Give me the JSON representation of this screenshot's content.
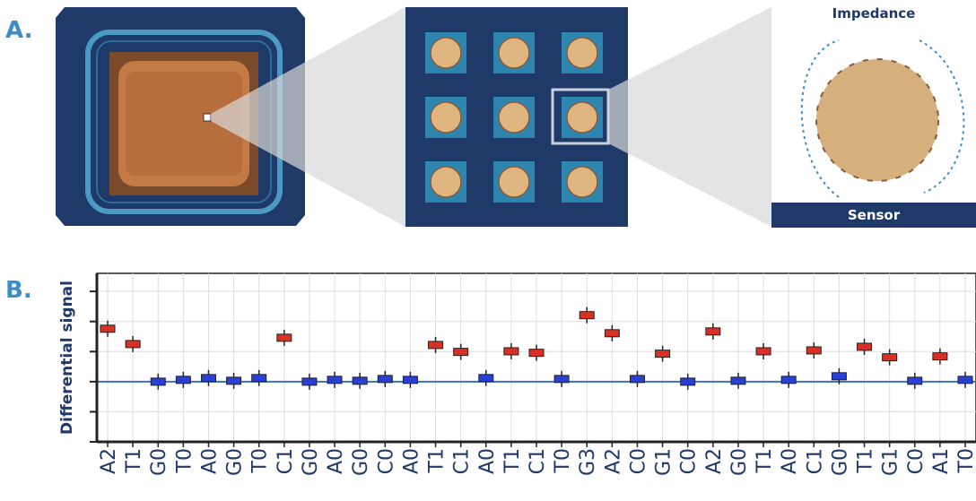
{
  "panel_a": {
    "label": "A.",
    "impedance": "Impedance",
    "sensor": "Sensor"
  },
  "panel_b": {
    "label": "B."
  },
  "chart_data": {
    "type": "box",
    "ylabel": "Differential signal",
    "categories": [
      "A2",
      "T1",
      "G0",
      "T0",
      "A0",
      "G0",
      "T0",
      "C1",
      "G0",
      "A0",
      "G0",
      "C0",
      "A0",
      "T1",
      "C1",
      "A0",
      "T1",
      "C1",
      "T0",
      "G3",
      "A2",
      "C0",
      "G1",
      "C0",
      "A2",
      "G0",
      "T1",
      "A0",
      "C1",
      "G0",
      "T1",
      "G1",
      "C0",
      "A1",
      "T0"
    ],
    "values": [
      1.76,
      1.25,
      0,
      0.06,
      0.12,
      0.03,
      0.12,
      1.46,
      0,
      0.06,
      0.03,
      0.09,
      0.06,
      1.22,
      0.99,
      0.12,
      1.01,
      0.96,
      0.09,
      2.21,
      1.61,
      0.09,
      0.93,
      0,
      1.67,
      0.03,
      1.01,
      0.06,
      1.04,
      0.18,
      1.16,
      0.81,
      0.03,
      0.84,
      0.06
    ],
    "colors": [
      "#d93025",
      "#d93025",
      "#2a3fd6",
      "#2a3fd6",
      "#2a3fd6",
      "#2a3fd6",
      "#2a3fd6",
      "#d93025",
      "#2a3fd6",
      "#2a3fd6",
      "#2a3fd6",
      "#2a3fd6",
      "#2a3fd6",
      "#d93025",
      "#d93025",
      "#2a3fd6",
      "#d93025",
      "#d93025",
      "#2a3fd6",
      "#d93025",
      "#d93025",
      "#2a3fd6",
      "#d93025",
      "#2a3fd6",
      "#d93025",
      "#2a3fd6",
      "#d93025",
      "#2a3fd6",
      "#d93025",
      "#2a3fd6",
      "#d93025",
      "#d93025",
      "#2a3fd6",
      "#d93025",
      "#2a3fd6"
    ],
    "ylim": [
      -2,
      3.6
    ],
    "yticks": [
      -2,
      -1,
      0,
      1,
      2,
      3
    ],
    "grid": true
  }
}
